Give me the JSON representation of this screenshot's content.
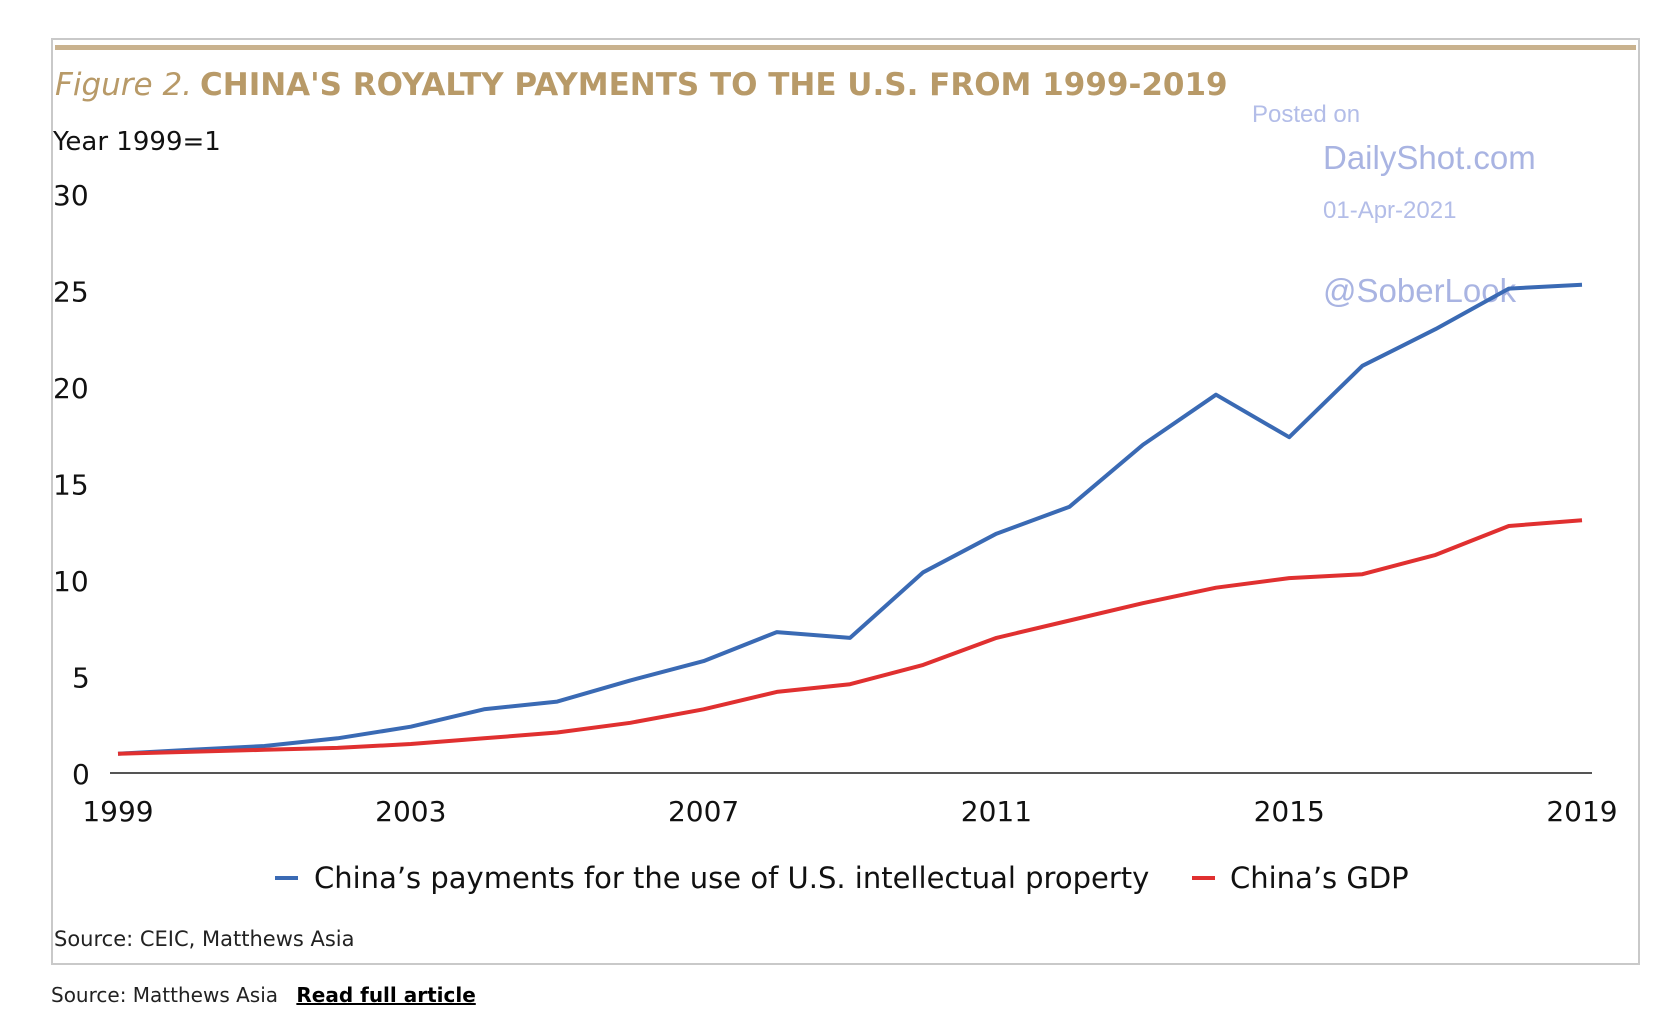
{
  "figure_label": "Figure 2.",
  "title": "CHINA'S ROYALTY PAYMENTS TO THE U.S. FROM 1999-2019",
  "watermark": {
    "line1": "Posted on",
    "line2": "DailyShot.com",
    "line3": "01-Apr-2021",
    "line4": "@SoberLook"
  },
  "legend": {
    "series_1": "China’s payments for the use of U.S. intellectual property",
    "series_2": "China’s GDP"
  },
  "chart_source": "Source: CEIC, Matthews Asia",
  "footer": {
    "source": "Source: Matthews Asia",
    "link": "Read full article"
  },
  "colors": {
    "title": "#b89a68",
    "series_1": "#3a6ab4",
    "series_2": "#e03030",
    "watermark": "#9aa8d8"
  },
  "chart_data": {
    "type": "line",
    "unit_label": "Year 1999=1",
    "x": [
      1999,
      2000,
      2001,
      2002,
      2003,
      2004,
      2005,
      2006,
      2007,
      2008,
      2009,
      2010,
      2011,
      2012,
      2013,
      2014,
      2015,
      2016,
      2017,
      2018,
      2019
    ],
    "x_ticks": [
      "1999",
      "2003",
      "2007",
      "2011",
      "2015",
      "2019"
    ],
    "y_ticks": [
      "0",
      "5",
      "10",
      "15",
      "20",
      "25",
      "30"
    ],
    "ylim": [
      0,
      30
    ],
    "xlim": [
      1999,
      2019
    ],
    "grid": false,
    "legend_position": "bottom",
    "series": [
      {
        "name": "China’s payments for the use of U.S. intellectual property",
        "values": [
          1.0,
          1.2,
          1.4,
          1.8,
          2.4,
          3.3,
          3.7,
          4.8,
          5.8,
          7.3,
          7.0,
          10.4,
          12.4,
          13.8,
          17.0,
          19.6,
          17.4,
          21.1,
          23.0,
          25.1,
          25.3
        ]
      },
      {
        "name": "China’s GDP",
        "values": [
          1.0,
          1.1,
          1.2,
          1.3,
          1.5,
          1.8,
          2.1,
          2.6,
          3.3,
          4.2,
          4.6,
          5.6,
          7.0,
          7.9,
          8.8,
          9.6,
          10.1,
          10.3,
          11.3,
          12.8,
          13.1
        ]
      }
    ]
  }
}
